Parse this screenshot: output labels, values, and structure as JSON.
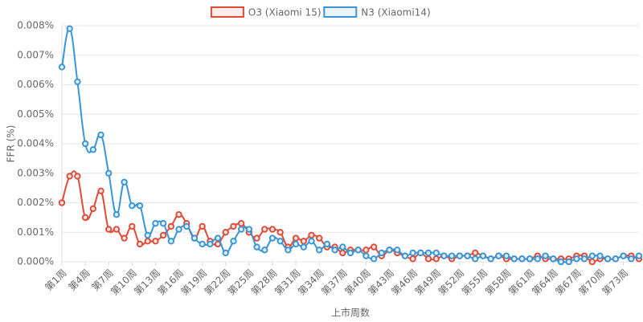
{
  "chart_data": {
    "type": "line",
    "y_label": "FFR (%)",
    "x_label": "上市周数",
    "legend": "top",
    "grid": true,
    "ylim": [
      0,
      0.008
    ],
    "yticks": [
      {
        "value": 0,
        "label": "0.000%"
      },
      {
        "value": 0.001,
        "label": "0.001%"
      },
      {
        "value": 0.002,
        "label": "0.002%"
      },
      {
        "value": 0.003,
        "label": "0.003%"
      },
      {
        "value": 0.004,
        "label": "0.004%"
      },
      {
        "value": 0.005,
        "label": "0.005%"
      },
      {
        "value": 0.006,
        "label": "0.006%"
      },
      {
        "value": 0.007,
        "label": "0.007%"
      },
      {
        "value": 0.008,
        "label": "0.008%"
      }
    ],
    "categories": [
      "第1周",
      null,
      null,
      "第4周",
      null,
      null,
      "第7周",
      null,
      null,
      "第10周",
      null,
      null,
      "第13周",
      null,
      null,
      "第16周",
      null,
      null,
      "第19周",
      null,
      null,
      "第22周",
      null,
      null,
      "第25周",
      null,
      null,
      "第28周",
      null,
      null,
      "第31周",
      null,
      null,
      "第34周",
      null,
      null,
      "第37周",
      null,
      null,
      "第40周",
      null,
      null,
      "第43周",
      null,
      null,
      "第46周",
      null,
      null,
      "第49周",
      null,
      null,
      "第52周",
      null,
      null,
      "第55周",
      null,
      null,
      "第58周",
      null,
      null,
      "第61周",
      null,
      null,
      "第64周",
      null,
      null,
      "第67周",
      null,
      null,
      "第70周",
      null,
      null,
      "第73周",
      null,
      null
    ],
    "series": [
      {
        "name": "O3 (Xiaomi 15)",
        "color": "#dd4b39",
        "values": [
          0.002,
          0.0029,
          0.0029,
          0.0015,
          0.0018,
          0.0024,
          0.0011,
          0.0011,
          0.0008,
          0.0012,
          0.0006,
          0.0007,
          0.0007,
          0.0009,
          0.0012,
          0.0016,
          0.0013,
          0.0008,
          0.0012,
          0.0007,
          0.0006,
          0.001,
          0.0012,
          0.0013,
          0.001,
          0.0008,
          0.0011,
          0.0011,
          0.001,
          0.0005,
          0.0008,
          0.0007,
          0.0009,
          0.0008,
          0.0005,
          0.0005,
          0.0003,
          0.0004,
          0.0004,
          0.0004,
          0.0005,
          0.0002,
          0.0004,
          0.0003,
          0.0002,
          0.0001,
          0.0003,
          0.0001,
          0.0001,
          0.0002,
          0.0001,
          0.0002,
          0.0002,
          0.0003,
          0.0002,
          0.0001,
          0.0002,
          0.0001,
          0.0001,
          0.0001,
          0.0001,
          0.0002,
          0.0001,
          0.0001,
          0.0001,
          0.0001,
          0.0002,
          0.0002,
          0,
          0.0001,
          0.0001,
          0.0001,
          0.0002,
          0.0002,
          0.0001
        ]
      },
      {
        "name": "N3 (Xiaomi14)",
        "color": "#3a95d6",
        "values": [
          0.0066,
          0.0079,
          0.0061,
          0.004,
          0.0038,
          0.0043,
          0.003,
          0.0016,
          0.0027,
          0.0019,
          0.0019,
          0.0009,
          0.0013,
          0.0013,
          0.0007,
          0.0011,
          0.0012,
          0.0008,
          0.0006,
          0.0006,
          0.0008,
          0.0003,
          0.0007,
          0.0011,
          0.0011,
          0.0005,
          0.0004,
          0.0008,
          0.0007,
          0.0004,
          0.0006,
          0.0005,
          0.0007,
          0.0004,
          0.0006,
          0.0004,
          0.0005,
          0.0003,
          0.0004,
          0.0002,
          0.0001,
          0.0003,
          0.0004,
          0.0004,
          0.0002,
          0.0003,
          0.0003,
          0.0003,
          0.0003,
          0.0002,
          0.0002,
          0.0002,
          0.0002,
          0.0001,
          0.0002,
          0.0001,
          0.0002,
          0.0002,
          0.0001,
          0.0001,
          0.0001,
          0.0001,
          0.0002,
          0.0001,
          0,
          0,
          0.0001,
          0.0001,
          0.0002,
          0.0002,
          0.0001,
          0.0001,
          0.0002,
          0.0001,
          0.0002
        ]
      }
    ]
  }
}
